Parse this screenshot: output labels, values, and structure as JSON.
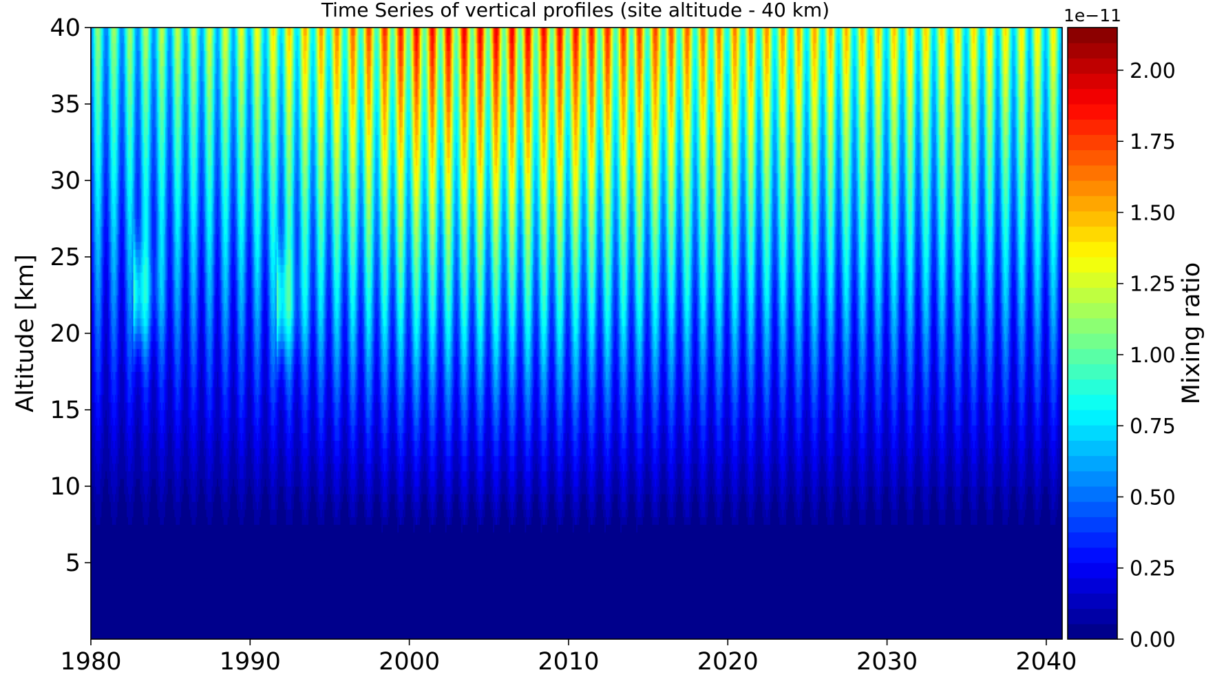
{
  "chart_data": {
    "type": "heatmap",
    "title": "Time Series of vertical profiles (site altitude - 40 km)",
    "xlabel": "",
    "ylabel": "Altitude [km]",
    "xlim": [
      1980,
      2041
    ],
    "ylim": [
      0,
      40
    ],
    "x_ticks": [
      1980,
      1990,
      2000,
      2010,
      2020,
      2030,
      2040
    ],
    "y_ticks": [
      5,
      10,
      15,
      20,
      25,
      30,
      35,
      40
    ],
    "colorbar": {
      "label": "Mixing ratio",
      "exponent_label": "1e−11",
      "range": [
        0,
        2.15
      ],
      "ticks": [
        "0.00",
        "0.25",
        "0.50",
        "0.75",
        "1.00",
        "1.25",
        "1.50",
        "1.75",
        "2.00"
      ],
      "tick_values": [
        0,
        0.25,
        0.5,
        0.75,
        1.0,
        1.25,
        1.5,
        1.75,
        2.0
      ],
      "colormap": "jet",
      "levels": 40
    },
    "profile_altitudes": [
      0,
      5,
      8,
      12,
      16,
      20,
      25,
      30,
      35,
      40
    ],
    "profile_max_by_epoch": {
      "years": [
        1980,
        1990,
        2000,
        2005,
        2010,
        2020,
        2030,
        2041
      ],
      "top_40km_peak": [
        1.0,
        1.2,
        1.75,
        1.8,
        1.75,
        1.5,
        1.35,
        1.25
      ]
    },
    "seasonal_cycle": "annual",
    "volcanic_events": [
      {
        "year": 1982.9,
        "altitude_km": 22.5
      },
      {
        "year": 1991.9,
        "altitude_km": 22
      }
    ],
    "grid": false
  }
}
